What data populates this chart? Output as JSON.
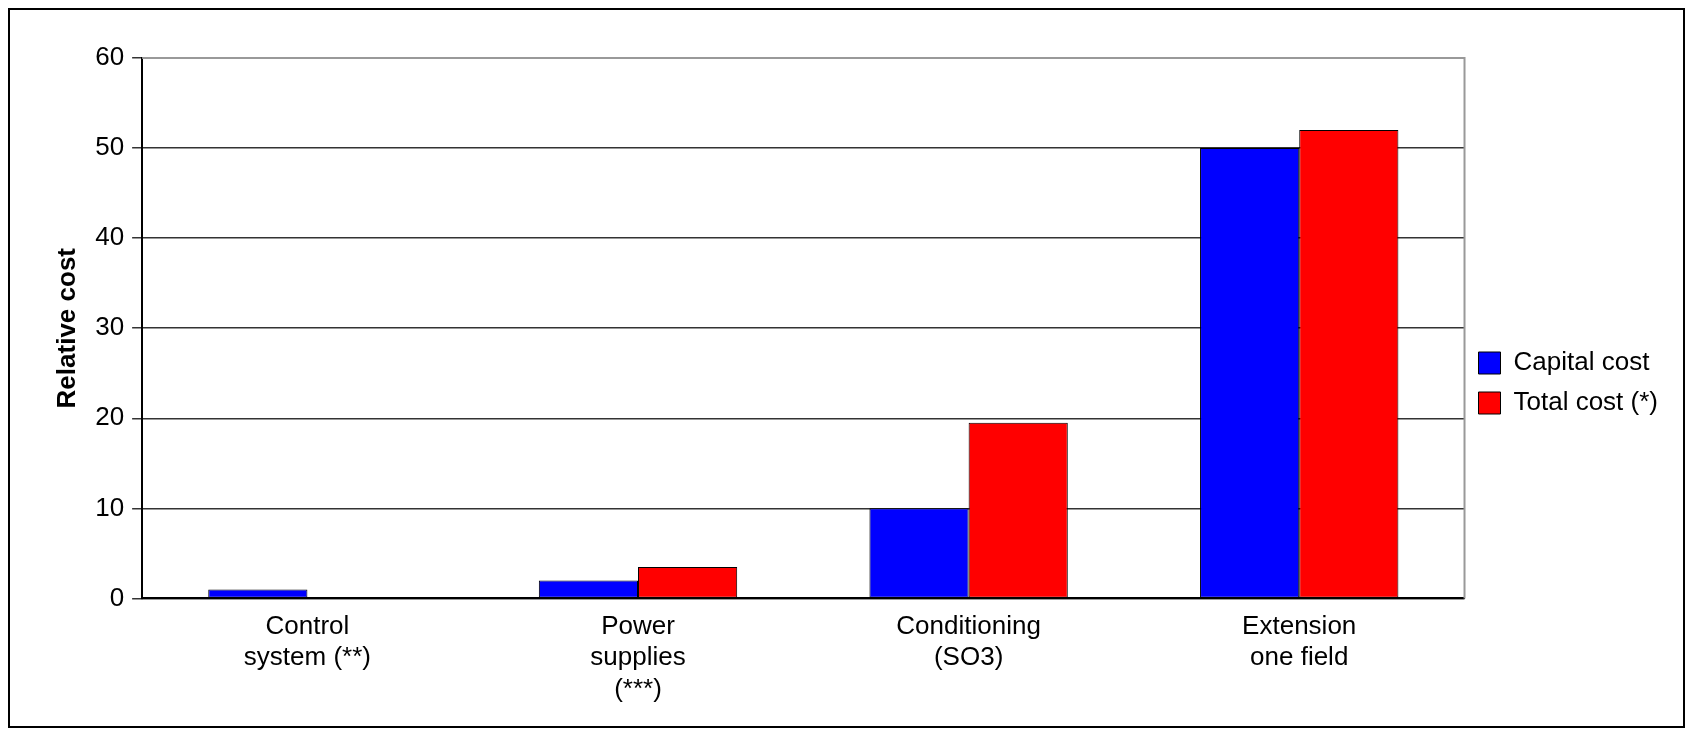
{
  "chart_data": {
    "type": "bar",
    "ylabel": "Relative cost",
    "categories": [
      "Control system (**)",
      "Power supplies (***)",
      "Conditioning (SO3)",
      "Extension one field"
    ],
    "series": [
      {
        "name": "Capital cost",
        "color": "#0000ff",
        "values": [
          1,
          2,
          10,
          50
        ]
      },
      {
        "name": "Total cost (*)",
        "color": "#ff0000",
        "values": [
          null,
          3.5,
          19.5,
          52
        ]
      }
    ],
    "ylim": [
      0,
      60
    ],
    "yticks": [
      0,
      10,
      20,
      30,
      40,
      50,
      60
    ],
    "grid": "y",
    "legend": "right"
  }
}
